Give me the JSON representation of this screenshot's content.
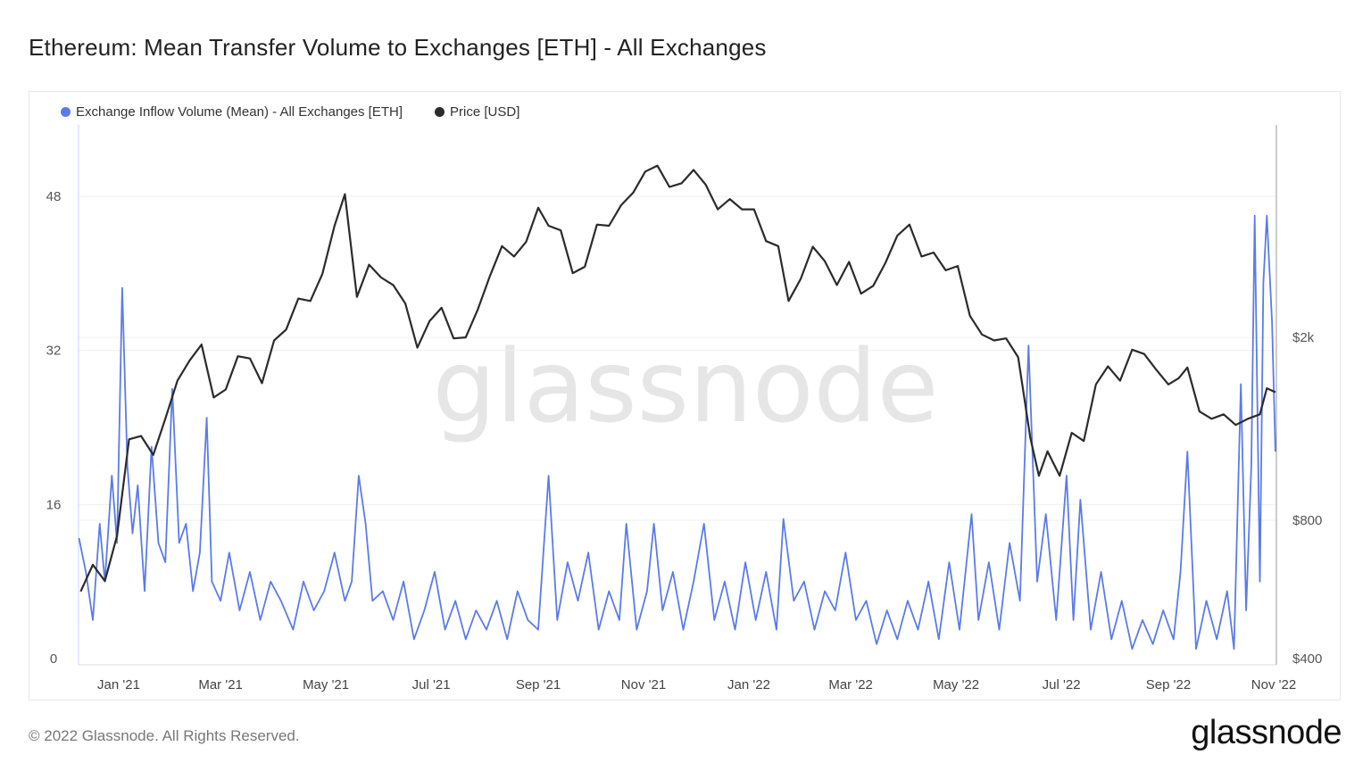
{
  "title": "Ethereum: Mean Transfer Volume to Exchanges [ETH] - All Exchanges",
  "footer": "© 2022 Glassnode. All Rights Reserved.",
  "logo": "glassnode",
  "watermark": "glassnode",
  "chart_data": {
    "type": "line",
    "title": "Ethereum: Mean Transfer Volume to Exchanges [ETH] - All Exchanges",
    "legend_position": "top-left",
    "grid": true,
    "x_ticks": [
      "Jan '21",
      "Mar '21",
      "May '21",
      "Jul '21",
      "Sep '21",
      "Nov '21",
      "Jan '22",
      "Mar '22",
      "May '22",
      "Jul '22",
      "Sep '22",
      "Nov '22"
    ],
    "x_tick_dates": [
      "2021-01-01",
      "2021-03-01",
      "2021-05-01",
      "2021-07-01",
      "2021-09-01",
      "2021-11-01",
      "2022-01-01",
      "2022-03-01",
      "2022-05-01",
      "2022-07-01",
      "2022-09-01",
      "2022-11-01"
    ],
    "xlim": [
      "2020-12-09",
      "2022-11-02"
    ],
    "y_left": {
      "ticks": [
        "0",
        "16",
        "32",
        "48"
      ],
      "tick_values": [
        0,
        16,
        32,
        48
      ],
      "ylim": [
        0,
        56
      ]
    },
    "y_right": {
      "scale": "log",
      "ticks": [
        "$400",
        "$800",
        "$2k"
      ],
      "tick_values": [
        400,
        800,
        2000
      ],
      "ylim": [
        400,
        6500
      ]
    },
    "series": [
      {
        "name": "Exchange Inflow Volume (Mean) - All Exchanges [ETH]",
        "color": "#5b7be9",
        "axis": "left",
        "points": [
          [
            "2020-12-09",
            12.5
          ],
          [
            "2020-12-13",
            9
          ],
          [
            "2020-12-17",
            4
          ],
          [
            "2020-12-21",
            14
          ],
          [
            "2020-12-24",
            8
          ],
          [
            "2020-12-28",
            19
          ],
          [
            "2020-12-31",
            12
          ],
          [
            "2021-01-03",
            38.5
          ],
          [
            "2021-01-06",
            20
          ],
          [
            "2021-01-09",
            13
          ],
          [
            "2021-01-12",
            18
          ],
          [
            "2021-01-16",
            7
          ],
          [
            "2021-01-20",
            22
          ],
          [
            "2021-01-24",
            12
          ],
          [
            "2021-01-28",
            10
          ],
          [
            "2021-02-01",
            28
          ],
          [
            "2021-02-05",
            12
          ],
          [
            "2021-02-09",
            14
          ],
          [
            "2021-02-13",
            7
          ],
          [
            "2021-02-17",
            11
          ],
          [
            "2021-02-21",
            25
          ],
          [
            "2021-02-24",
            8
          ],
          [
            "2021-03-01",
            6
          ],
          [
            "2021-03-06",
            11
          ],
          [
            "2021-03-12",
            5
          ],
          [
            "2021-03-18",
            9
          ],
          [
            "2021-03-24",
            4
          ],
          [
            "2021-03-30",
            8
          ],
          [
            "2021-04-05",
            6
          ],
          [
            "2021-04-12",
            3
          ],
          [
            "2021-04-18",
            8
          ],
          [
            "2021-04-24",
            5
          ],
          [
            "2021-04-30",
            7
          ],
          [
            "2021-05-06",
            11
          ],
          [
            "2021-05-12",
            6
          ],
          [
            "2021-05-16",
            8
          ],
          [
            "2021-05-20",
            19
          ],
          [
            "2021-05-24",
            14
          ],
          [
            "2021-05-28",
            6
          ],
          [
            "2021-06-03",
            7
          ],
          [
            "2021-06-09",
            4
          ],
          [
            "2021-06-15",
            8
          ],
          [
            "2021-06-21",
            2
          ],
          [
            "2021-06-27",
            5
          ],
          [
            "2021-07-03",
            9
          ],
          [
            "2021-07-09",
            3
          ],
          [
            "2021-07-15",
            6
          ],
          [
            "2021-07-21",
            2
          ],
          [
            "2021-07-27",
            5
          ],
          [
            "2021-08-02",
            3
          ],
          [
            "2021-08-08",
            6
          ],
          [
            "2021-08-14",
            2
          ],
          [
            "2021-08-20",
            7
          ],
          [
            "2021-08-26",
            4
          ],
          [
            "2021-09-01",
            3
          ],
          [
            "2021-09-07",
            19
          ],
          [
            "2021-09-12",
            4
          ],
          [
            "2021-09-18",
            10
          ],
          [
            "2021-09-24",
            6
          ],
          [
            "2021-09-30",
            11
          ],
          [
            "2021-10-06",
            3
          ],
          [
            "2021-10-12",
            7
          ],
          [
            "2021-10-18",
            4
          ],
          [
            "2021-10-22",
            14
          ],
          [
            "2021-10-28",
            3
          ],
          [
            "2021-11-03",
            7
          ],
          [
            "2021-11-07",
            14
          ],
          [
            "2021-11-12",
            5
          ],
          [
            "2021-11-18",
            9
          ],
          [
            "2021-11-24",
            3
          ],
          [
            "2021-11-30",
            8
          ],
          [
            "2021-12-06",
            14
          ],
          [
            "2021-12-12",
            4
          ],
          [
            "2021-12-18",
            8
          ],
          [
            "2021-12-24",
            3
          ],
          [
            "2021-12-30",
            10
          ],
          [
            "2022-01-05",
            4
          ],
          [
            "2022-01-11",
            9
          ],
          [
            "2022-01-17",
            3
          ],
          [
            "2022-01-21",
            14.5
          ],
          [
            "2022-01-27",
            6
          ],
          [
            "2022-02-02",
            8
          ],
          [
            "2022-02-08",
            3
          ],
          [
            "2022-02-14",
            7
          ],
          [
            "2022-02-20",
            5
          ],
          [
            "2022-02-26",
            11
          ],
          [
            "2022-03-04",
            4
          ],
          [
            "2022-03-10",
            6
          ],
          [
            "2022-03-16",
            1.5
          ],
          [
            "2022-03-22",
            5
          ],
          [
            "2022-03-28",
            2
          ],
          [
            "2022-04-03",
            6
          ],
          [
            "2022-04-09",
            3
          ],
          [
            "2022-04-15",
            8
          ],
          [
            "2022-04-21",
            2
          ],
          [
            "2022-04-27",
            10
          ],
          [
            "2022-05-03",
            3
          ],
          [
            "2022-05-10",
            15
          ],
          [
            "2022-05-14",
            4
          ],
          [
            "2022-05-20",
            10
          ],
          [
            "2022-05-26",
            3
          ],
          [
            "2022-06-01",
            12
          ],
          [
            "2022-06-07",
            6
          ],
          [
            "2022-06-12",
            32.5
          ],
          [
            "2022-06-17",
            8
          ],
          [
            "2022-06-22",
            15
          ],
          [
            "2022-06-28",
            4
          ],
          [
            "2022-07-04",
            19
          ],
          [
            "2022-07-08",
            4
          ],
          [
            "2022-07-12",
            16.5
          ],
          [
            "2022-07-18",
            3
          ],
          [
            "2022-07-24",
            9
          ],
          [
            "2022-07-30",
            2
          ],
          [
            "2022-08-05",
            6
          ],
          [
            "2022-08-11",
            1
          ],
          [
            "2022-08-17",
            4
          ],
          [
            "2022-08-23",
            1.5
          ],
          [
            "2022-08-29",
            5
          ],
          [
            "2022-09-04",
            2
          ],
          [
            "2022-09-08",
            9
          ],
          [
            "2022-09-12",
            21.5
          ],
          [
            "2022-09-17",
            1
          ],
          [
            "2022-09-23",
            6
          ],
          [
            "2022-09-29",
            2
          ],
          [
            "2022-10-05",
            7
          ],
          [
            "2022-10-09",
            1
          ],
          [
            "2022-10-13",
            28.5
          ],
          [
            "2022-10-16",
            5
          ],
          [
            "2022-10-19",
            20
          ],
          [
            "2022-10-21",
            46
          ],
          [
            "2022-10-24",
            8
          ],
          [
            "2022-10-26",
            39
          ],
          [
            "2022-10-28",
            46
          ],
          [
            "2022-10-31",
            35
          ],
          [
            "2022-11-02",
            21.5
          ]
        ]
      },
      {
        "name": "Price [USD]",
        "color": "#2b2b2b",
        "axis": "right",
        "points": [
          [
            "2020-12-10",
            560
          ],
          [
            "2020-12-17",
            640
          ],
          [
            "2020-12-24",
            590
          ],
          [
            "2020-12-31",
            740
          ],
          [
            "2021-01-07",
            1200
          ],
          [
            "2021-01-14",
            1220
          ],
          [
            "2021-01-21",
            1110
          ],
          [
            "2021-01-28",
            1330
          ],
          [
            "2021-02-04",
            1610
          ],
          [
            "2021-02-11",
            1780
          ],
          [
            "2021-02-18",
            1930
          ],
          [
            "2021-02-25",
            1480
          ],
          [
            "2021-03-04",
            1540
          ],
          [
            "2021-03-11",
            1820
          ],
          [
            "2021-03-18",
            1800
          ],
          [
            "2021-03-25",
            1590
          ],
          [
            "2021-04-01",
            1970
          ],
          [
            "2021-04-08",
            2080
          ],
          [
            "2021-04-15",
            2430
          ],
          [
            "2021-04-22",
            2400
          ],
          [
            "2021-04-29",
            2750
          ],
          [
            "2021-05-06",
            3500
          ],
          [
            "2021-05-12",
            4100
          ],
          [
            "2021-05-19",
            2450
          ],
          [
            "2021-05-26",
            2880
          ],
          [
            "2021-06-02",
            2700
          ],
          [
            "2021-06-09",
            2600
          ],
          [
            "2021-06-16",
            2370
          ],
          [
            "2021-06-23",
            1900
          ],
          [
            "2021-06-30",
            2170
          ],
          [
            "2021-07-07",
            2320
          ],
          [
            "2021-07-14",
            1990
          ],
          [
            "2021-07-21",
            2000
          ],
          [
            "2021-07-28",
            2300
          ],
          [
            "2021-08-04",
            2720
          ],
          [
            "2021-08-11",
            3160
          ],
          [
            "2021-08-18",
            3000
          ],
          [
            "2021-08-25",
            3230
          ],
          [
            "2021-09-01",
            3830
          ],
          [
            "2021-09-07",
            3500
          ],
          [
            "2021-09-14",
            3420
          ],
          [
            "2021-09-21",
            2760
          ],
          [
            "2021-09-28",
            2850
          ],
          [
            "2021-10-05",
            3520
          ],
          [
            "2021-10-12",
            3500
          ],
          [
            "2021-10-19",
            3880
          ],
          [
            "2021-10-26",
            4130
          ],
          [
            "2021-11-02",
            4590
          ],
          [
            "2021-11-09",
            4730
          ],
          [
            "2021-11-16",
            4250
          ],
          [
            "2021-11-23",
            4330
          ],
          [
            "2021-11-30",
            4630
          ],
          [
            "2021-12-07",
            4300
          ],
          [
            "2021-12-14",
            3800
          ],
          [
            "2021-12-21",
            4000
          ],
          [
            "2021-12-28",
            3800
          ],
          [
            "2022-01-04",
            3800
          ],
          [
            "2022-01-11",
            3240
          ],
          [
            "2022-01-18",
            3160
          ],
          [
            "2022-01-24",
            2400
          ],
          [
            "2022-01-31",
            2680
          ],
          [
            "2022-02-07",
            3150
          ],
          [
            "2022-02-14",
            2930
          ],
          [
            "2022-02-21",
            2600
          ],
          [
            "2022-02-28",
            2920
          ],
          [
            "2022-03-07",
            2490
          ],
          [
            "2022-03-14",
            2590
          ],
          [
            "2022-03-21",
            2900
          ],
          [
            "2022-03-28",
            3330
          ],
          [
            "2022-04-04",
            3520
          ],
          [
            "2022-04-11",
            3000
          ],
          [
            "2022-04-18",
            3060
          ],
          [
            "2022-04-25",
            2800
          ],
          [
            "2022-05-02",
            2860
          ],
          [
            "2022-05-09",
            2230
          ],
          [
            "2022-05-16",
            2030
          ],
          [
            "2022-05-23",
            1970
          ],
          [
            "2022-05-30",
            1990
          ],
          [
            "2022-06-06",
            1810
          ],
          [
            "2022-06-13",
            1210
          ],
          [
            "2022-06-18",
            1000
          ],
          [
            "2022-06-23",
            1130
          ],
          [
            "2022-06-30",
            1000
          ],
          [
            "2022-07-07",
            1240
          ],
          [
            "2022-07-14",
            1190
          ],
          [
            "2022-07-21",
            1580
          ],
          [
            "2022-07-28",
            1730
          ],
          [
            "2022-08-04",
            1610
          ],
          [
            "2022-08-11",
            1880
          ],
          [
            "2022-08-18",
            1840
          ],
          [
            "2022-08-25",
            1700
          ],
          [
            "2022-09-01",
            1580
          ],
          [
            "2022-09-07",
            1630
          ],
          [
            "2022-09-12",
            1720
          ],
          [
            "2022-09-19",
            1380
          ],
          [
            "2022-09-26",
            1330
          ],
          [
            "2022-10-03",
            1360
          ],
          [
            "2022-10-10",
            1290
          ],
          [
            "2022-10-17",
            1330
          ],
          [
            "2022-10-24",
            1360
          ],
          [
            "2022-10-28",
            1550
          ],
          [
            "2022-11-02",
            1520
          ]
        ]
      }
    ]
  }
}
